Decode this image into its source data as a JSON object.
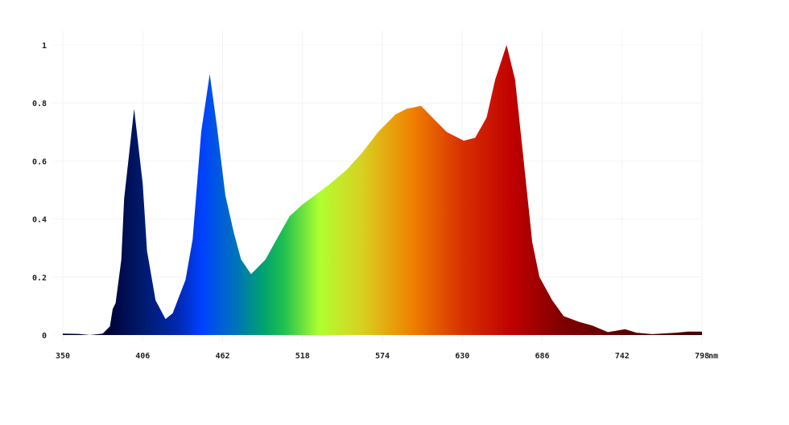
{
  "chart_data": {
    "type": "area",
    "title": "",
    "xlabel": "",
    "ylabel": "",
    "x_unit": "nm",
    "xlim": [
      350,
      800
    ],
    "ylim": [
      0,
      1.05
    ],
    "x_ticks": [
      350,
      406,
      462,
      518,
      574,
      630,
      686,
      742,
      798
    ],
    "y_ticks": [
      0,
      0.2,
      0.4,
      0.6,
      0.8,
      1
    ],
    "y_tick_labels": [
      "0",
      "0.2",
      "0.4",
      "0.6",
      "0.8",
      "1"
    ],
    "grid": true,
    "fill": "spectral wavelength gradient",
    "x": [
      350,
      361,
      369,
      378,
      383,
      385,
      387,
      391,
      393,
      400,
      406,
      409,
      415,
      422,
      427,
      436,
      441,
      447,
      453,
      458,
      464,
      470,
      475,
      482,
      492,
      501,
      509,
      518,
      529,
      537,
      549,
      560,
      571,
      583,
      591,
      601,
      611,
      619,
      631,
      639,
      647,
      653,
      661,
      667,
      673,
      679,
      684,
      693,
      701,
      712,
      721,
      732,
      744,
      752,
      763,
      780,
      788,
      798
    ],
    "y": [
      0.005,
      0.004,
      0.0,
      0.005,
      0.03,
      0.09,
      0.11,
      0.26,
      0.47,
      0.78,
      0.52,
      0.29,
      0.12,
      0.055,
      0.075,
      0.19,
      0.33,
      0.7,
      0.9,
      0.72,
      0.48,
      0.35,
      0.26,
      0.21,
      0.26,
      0.34,
      0.41,
      0.45,
      0.49,
      0.52,
      0.57,
      0.63,
      0.7,
      0.76,
      0.78,
      0.79,
      0.74,
      0.7,
      0.67,
      0.68,
      0.75,
      0.88,
      1.0,
      0.88,
      0.6,
      0.32,
      0.2,
      0.12,
      0.065,
      0.045,
      0.033,
      0.01,
      0.02,
      0.008,
      0.003,
      0.008,
      0.012,
      0.012
    ],
    "colors": {
      "380": "#000033",
      "406": "#001a6e",
      "430": "#0028b0",
      "447": "#0040ff",
      "470": "#0070c0",
      "490": "#00a070",
      "505": "#20c050",
      "530": "#b0ff30",
      "560": "#d8d020",
      "595": "#f08000",
      "630": "#d83000",
      "665": "#c00000",
      "700": "#800000",
      "760": "#500000",
      "798": "#4a0000"
    }
  }
}
